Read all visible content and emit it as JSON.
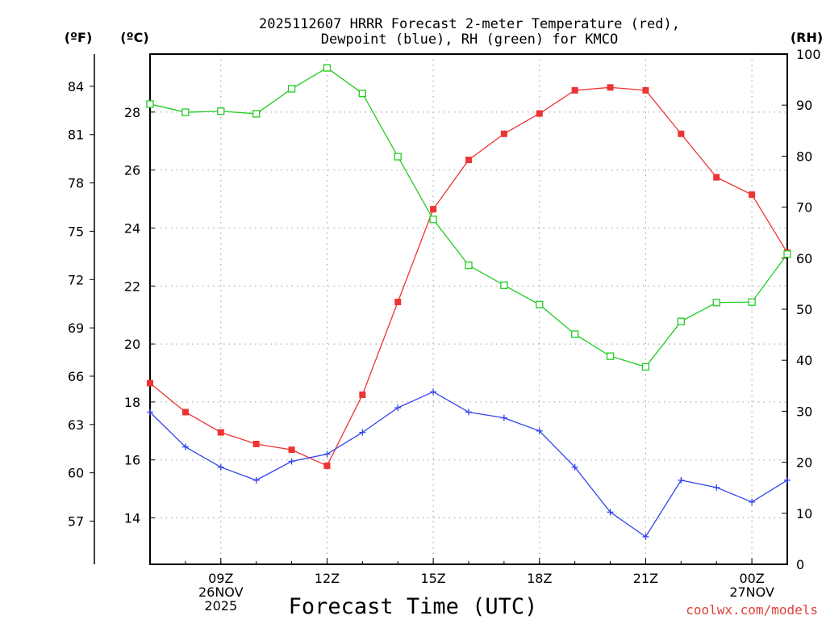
{
  "chart_data": {
    "type": "line",
    "title_line1": "2025112607 HRRR Forecast 2-meter Temperature (red),",
    "title_line2": "Dewpoint (blue), RH (green) for KMCO",
    "xlabel": "Forecast Time (UTC)",
    "credit": "coolwx.com/models",
    "units": {
      "fahrenheit": "(ºF)",
      "celsius": "(ºC)",
      "rh": "(RH)"
    },
    "celsius_axis": {
      "min": 12.4,
      "max": 30,
      "ticks": [
        14,
        16,
        18,
        20,
        22,
        24,
        26,
        28
      ]
    },
    "fahrenheit_ticks": [
      57,
      60,
      63,
      66,
      69,
      72,
      75,
      78,
      81,
      84
    ],
    "rh_axis": {
      "min": 0,
      "max": 100,
      "ticks": [
        0,
        10,
        20,
        30,
        40,
        50,
        60,
        70,
        80,
        90,
        100
      ]
    },
    "x_hours": [
      7,
      8,
      9,
      10,
      11,
      12,
      13,
      14,
      15,
      16,
      17,
      18,
      19,
      20,
      21,
      22,
      23,
      24,
      25
    ],
    "x_ticks": [
      {
        "hour": 9,
        "lines": [
          "09Z",
          "26NOV",
          "2025"
        ]
      },
      {
        "hour": 12,
        "lines": [
          "12Z"
        ]
      },
      {
        "hour": 15,
        "lines": [
          "15Z"
        ]
      },
      {
        "hour": 18,
        "lines": [
          "18Z"
        ]
      },
      {
        "hour": 21,
        "lines": [
          "21Z"
        ]
      },
      {
        "hour": 24,
        "lines": [
          "00Z",
          "27NOV"
        ]
      }
    ],
    "series": [
      {
        "name": "Temperature",
        "unit": "C",
        "color": "#ee3333",
        "marker": "filled-square",
        "values": [
          18.65,
          17.65,
          16.95,
          16.55,
          16.35,
          15.8,
          18.25,
          21.45,
          24.65,
          26.35,
          27.25,
          27.95,
          28.75,
          28.85,
          28.75,
          27.25,
          25.75,
          25.15,
          23.15
        ]
      },
      {
        "name": "Dewpoint",
        "unit": "C",
        "color": "#3344ee",
        "marker": "plus",
        "values": [
          17.65,
          16.45,
          15.75,
          15.3,
          15.95,
          16.2,
          16.95,
          17.8,
          18.35,
          17.65,
          17.45,
          17.0,
          15.75,
          14.2,
          13.35,
          15.3,
          15.05,
          14.55,
          15.3
        ]
      },
      {
        "name": "Relative Humidity",
        "unit": "%",
        "color": "#22cc22",
        "marker": "open-square",
        "values": [
          90.2,
          88.6,
          88.8,
          88.3,
          93.2,
          97.3,
          92.3,
          79.9,
          67.6,
          58.6,
          54.7,
          50.9,
          45.1,
          40.8,
          38.7,
          47.6,
          51.3,
          51.4,
          60.8
        ]
      }
    ]
  }
}
